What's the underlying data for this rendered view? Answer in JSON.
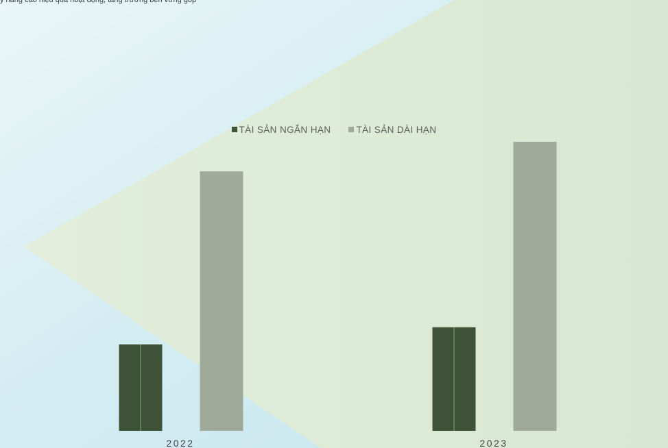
{
  "top_text": "y nâng cao hiệu quả hoạt động, tăng trưởng bền vững góp",
  "chart_data": {
    "type": "bar",
    "categories": [
      "2022",
      "2023"
    ],
    "series": [
      {
        "name": "TÀI SẢN NGẮN HẠN",
        "values": [
          111,
          133
        ],
        "color": "#3e5238"
      },
      {
        "name": "TÀI SẢN DÀI HẠN",
        "values": [
          333,
          371
        ],
        "color": "#a0aa9b"
      }
    ],
    "title": "",
    "xlabel": "",
    "ylabel": "",
    "ylim": [
      0,
      400
    ],
    "grid": false,
    "legend_position": "top-center"
  },
  "colors": {
    "background_light_blue": "#cfeaf0",
    "background_pale_green": "#dbe9d4",
    "tick_label": "#444444"
  }
}
